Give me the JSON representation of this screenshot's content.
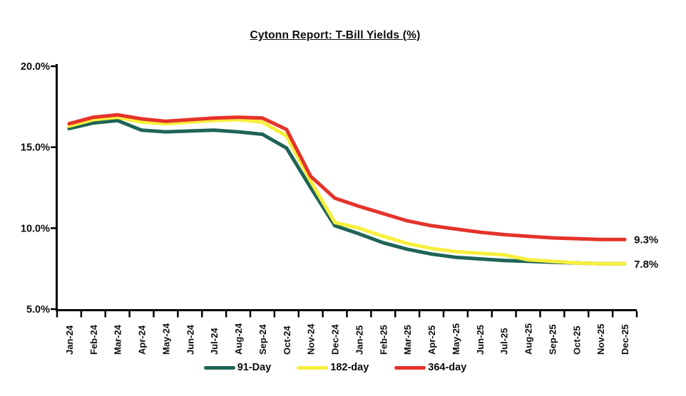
{
  "title": "Cytonn Report: T-Bill Yields (%)",
  "chart_data": {
    "type": "line",
    "title": "Cytonn Report: T-Bill Yields (%)",
    "xlabel": "",
    "ylabel": "",
    "ylim": [
      5,
      20
    ],
    "grid": false,
    "legend_position": "bottom",
    "y_ticks": [
      {
        "value": 20,
        "label": "20.0%"
      },
      {
        "value": 15,
        "label": "15.0%"
      },
      {
        "value": 10,
        "label": "10.0%"
      },
      {
        "value": 5,
        "label": "5.0%"
      }
    ],
    "categories": [
      "Jan-24",
      "Feb-24",
      "Mar-24",
      "Apr-24",
      "May-24",
      "Jun-24",
      "Jul-24",
      "Aug-24",
      "Sep-24",
      "Oct-24",
      "Nov-24",
      "Dec-24",
      "Jan-25",
      "Feb-25",
      "Mar-25",
      "Apr-25",
      "May-25",
      "Jun-25",
      "Jul-25",
      "Aug-25",
      "Sep-25",
      "Oct-25",
      "Nov-25",
      "Dec-25"
    ],
    "series": [
      {
        "name": "91-Day",
        "color": "#1F6456",
        "end_label": "",
        "values": [
          16.15,
          16.5,
          16.65,
          16.05,
          15.95,
          16.0,
          16.05,
          15.95,
          15.8,
          14.95,
          12.5,
          10.15,
          9.65,
          9.1,
          8.7,
          8.4,
          8.2,
          8.1,
          8.0,
          7.95,
          7.9,
          7.85,
          7.8,
          7.8
        ]
      },
      {
        "name": "182-day",
        "color": "#F7EF3C",
        "end_label": "7.8%",
        "values": [
          16.3,
          16.7,
          16.85,
          16.55,
          16.45,
          16.55,
          16.65,
          16.7,
          16.55,
          15.7,
          12.9,
          10.35,
          10.0,
          9.5,
          9.05,
          8.75,
          8.55,
          8.45,
          8.35,
          8.05,
          7.95,
          7.85,
          7.8,
          7.8
        ]
      },
      {
        "name": "364-day",
        "color": "#E5332A",
        "end_label": "9.3%",
        "values": [
          16.45,
          16.85,
          17.0,
          16.75,
          16.6,
          16.7,
          16.8,
          16.85,
          16.8,
          16.1,
          13.2,
          11.85,
          11.35,
          10.9,
          10.45,
          10.15,
          9.95,
          9.75,
          9.6,
          9.5,
          9.4,
          9.35,
          9.3,
          9.3
        ]
      }
    ]
  }
}
